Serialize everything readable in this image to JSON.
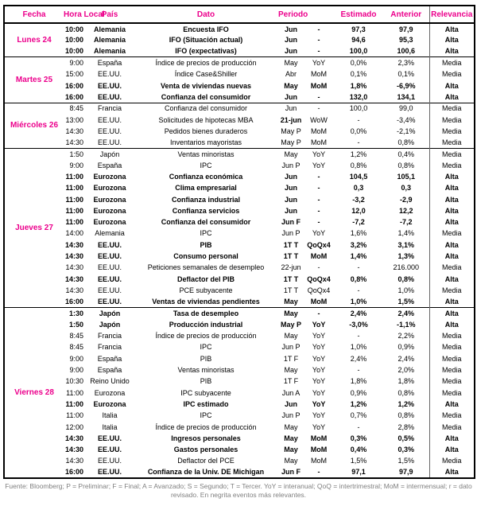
{
  "accent": "#EC008C",
  "header": {
    "columns": [
      "Fecha",
      "Hora Local",
      "País",
      "Dato",
      "Periodo",
      "",
      "Estimado",
      "Anterior",
      "Relevancia"
    ]
  },
  "sections": [
    {
      "day": "Lunes 24",
      "rows": [
        {
          "time": "10:00",
          "country": "Alemania",
          "dato": "Encuesta IFO",
          "period": "Jun",
          "freq": "-",
          "est": "97,3",
          "ant": "97,9",
          "rel": "Alta",
          "bold": true
        },
        {
          "time": "10:00",
          "country": "Alemania",
          "dato": "IFO (Situación actual)",
          "period": "Jun",
          "freq": "-",
          "est": "94,6",
          "ant": "95,3",
          "rel": "Alta",
          "bold": true
        },
        {
          "time": "10:00",
          "country": "Alemania",
          "dato": "IFO (expectativas)",
          "period": "Jun",
          "freq": "-",
          "est": "100,0",
          "ant": "100,6",
          "rel": "Alta",
          "bold": true
        }
      ]
    },
    {
      "day": "Martes 25",
      "rows": [
        {
          "time": "9:00",
          "country": "España",
          "dato": "Índice de precios de producción",
          "period": "May",
          "freq": "YoY",
          "est": "0,0%",
          "ant": "2,3%",
          "rel": "Media",
          "bold": false
        },
        {
          "time": "15:00",
          "country": "EE.UU.",
          "dato": "Índice Case&Shiller",
          "period": "Abr",
          "freq": "MoM",
          "est": "0,1%",
          "ant": "0,1%",
          "rel": "Media",
          "bold": false
        },
        {
          "time": "16:00",
          "country": "EE.UU.",
          "dato": "Venta de viviendas nuevas",
          "period": "May",
          "freq": "MoM",
          "est": "1,8%",
          "ant": "-6,9%",
          "rel": "Alta",
          "bold": true
        },
        {
          "time": "16:00",
          "country": "EE.UU.",
          "dato": "Confianza del consumidor",
          "period": "Jun",
          "freq": "-",
          "est": "132,0",
          "ant": "134,1",
          "rel": "Alta",
          "bold": true
        }
      ]
    },
    {
      "day": "Miércoles 26",
      "rows": [
        {
          "time": "8:45",
          "country": "Francia",
          "dato": "Confianza del consumidor",
          "period": "Jun",
          "freq": "-",
          "est": "100,0",
          "ant": "99,0",
          "rel": "Media",
          "bold": false
        },
        {
          "time": "13:00",
          "country": "EE.UU.",
          "dato": "Solicitudes de hipotecas MBA",
          "period": "21-jun",
          "freq": "WoW",
          "est": "-",
          "ant": "-3,4%",
          "rel": "Media",
          "bold": false,
          "pbold": true
        },
        {
          "time": "14:30",
          "country": "EE.UU.",
          "dato": "Pedidos bienes duraderos",
          "period": "May P",
          "freq": "MoM",
          "est": "0,0%",
          "ant": "-2,1%",
          "rel": "Media",
          "bold": false
        },
        {
          "time": "14:30",
          "country": "EE.UU.",
          "dato": "Inventarios mayoristas",
          "period": "May P",
          "freq": "MoM",
          "est": "-",
          "ant": "0,8%",
          "rel": "Media",
          "bold": false
        }
      ]
    },
    {
      "day": "Jueves 27",
      "rows": [
        {
          "time": "1:50",
          "country": "Japón",
          "dato": "Ventas minoristas",
          "period": "May",
          "freq": "YoY",
          "est": "1,2%",
          "ant": "0,4%",
          "rel": "Media",
          "bold": false
        },
        {
          "time": "9:00",
          "country": "España",
          "dato": "IPC",
          "period": "Jun P",
          "freq": "YoY",
          "est": "0,8%",
          "ant": "0,8%",
          "rel": "Media",
          "bold": false
        },
        {
          "time": "11:00",
          "country": "Eurozona",
          "dato": "Confianza económica",
          "period": "Jun",
          "freq": "-",
          "est": "104,5",
          "ant": "105,1",
          "rel": "Alta",
          "bold": true
        },
        {
          "time": "11:00",
          "country": "Eurozona",
          "dato": "Clima empresarial",
          "period": "Jun",
          "freq": "-",
          "est": "0,3",
          "ant": "0,3",
          "rel": "Alta",
          "bold": true
        },
        {
          "time": "11:00",
          "country": "Eurozona",
          "dato": "Confianza industrial",
          "period": "Jun",
          "freq": "-",
          "est": "-3,2",
          "ant": "-2,9",
          "rel": "Alta",
          "bold": true
        },
        {
          "time": "11:00",
          "country": "Eurozona",
          "dato": "Confianza servicios",
          "period": "Jun",
          "freq": "-",
          "est": "12,0",
          "ant": "12,2",
          "rel": "Alta",
          "bold": true
        },
        {
          "time": "11:00",
          "country": "Eurozona",
          "dato": "Confianza del consumidor",
          "period": "Jun F",
          "freq": "-",
          "est": "-7,2",
          "ant": "-7,2",
          "rel": "Alta",
          "bold": true
        },
        {
          "time": "14:00",
          "country": "Alemania",
          "dato": "IPC",
          "period": "Jun P",
          "freq": "YoY",
          "est": "1,6%",
          "ant": "1,4%",
          "rel": "Media",
          "bold": false
        },
        {
          "time": "14:30",
          "country": "EE.UU.",
          "dato": "PIB",
          "period": "1T T",
          "freq": "QoQx4",
          "est": "3,2%",
          "ant": "3,1%",
          "rel": "Alta",
          "bold": true
        },
        {
          "time": "14:30",
          "country": "EE.UU.",
          "dato": "Consumo personal",
          "period": "1T T",
          "freq": "MoM",
          "est": "1,4%",
          "ant": "1,3%",
          "rel": "Alta",
          "bold": true
        },
        {
          "time": "14:30",
          "country": "EE.UU.",
          "dato": "Peticiones semanales de desempleo",
          "period": "22-jun",
          "freq": "-",
          "est": "-",
          "ant": "216.000",
          "rel": "Media",
          "bold": false
        },
        {
          "time": "14:30",
          "country": "EE.UU.",
          "dato": "Deflactor del PIB",
          "period": "1T T",
          "freq": "QoQx4",
          "est": "0,8%",
          "ant": "0,8%",
          "rel": "Alta",
          "bold": true
        },
        {
          "time": "14:30",
          "country": "EE.UU.",
          "dato": "PCE subyacente",
          "period": "1T T",
          "freq": "QoQx4",
          "est": "-",
          "ant": "1,0%",
          "rel": "Media",
          "bold": false
        },
        {
          "time": "16:00",
          "country": "EE.UU.",
          "dato": "Ventas de viviendas pendientes",
          "period": "May",
          "freq": "MoM",
          "est": "1,0%",
          "ant": "1,5%",
          "rel": "Alta",
          "bold": true
        }
      ]
    },
    {
      "day": "Viernes 28",
      "rows": [
        {
          "time": "1:30",
          "country": "Japón",
          "dato": "Tasa de desempleo",
          "period": "May",
          "freq": "-",
          "est": "2,4%",
          "ant": "2,4%",
          "rel": "Alta",
          "bold": true
        },
        {
          "time": "1:50",
          "country": "Japón",
          "dato": "Producción industrial",
          "period": "May P",
          "freq": "YoY",
          "est": "-3,0%",
          "ant": "-1,1%",
          "rel": "Alta",
          "bold": true
        },
        {
          "time": "8:45",
          "country": "Francia",
          "dato": "Índice de precios de producción",
          "period": "May",
          "freq": "YoY",
          "est": "-",
          "ant": "2,2%",
          "rel": "Media",
          "bold": false
        },
        {
          "time": "8:45",
          "country": "Francia",
          "dato": "IPC",
          "period": "Jun P",
          "freq": "YoY",
          "est": "1,0%",
          "ant": "0,9%",
          "rel": "Media",
          "bold": false
        },
        {
          "time": "9:00",
          "country": "España",
          "dato": "PIB",
          "period": "1T F",
          "freq": "YoY",
          "est": "2,4%",
          "ant": "2,4%",
          "rel": "Media",
          "bold": false
        },
        {
          "time": "9:00",
          "country": "España",
          "dato": "Ventas minoristas",
          "period": "May",
          "freq": "YoY",
          "est": "-",
          "ant": "2,0%",
          "rel": "Media",
          "bold": false
        },
        {
          "time": "10:30",
          "country": "Reino Unido",
          "dato": "PIB",
          "period": "1T F",
          "freq": "YoY",
          "est": "1,8%",
          "ant": "1,8%",
          "rel": "Media",
          "bold": false
        },
        {
          "time": "11:00",
          "country": "Eurozona",
          "dato": "IPC subyacente",
          "period": "Jun A",
          "freq": "YoY",
          "est": "0,9%",
          "ant": "0,8%",
          "rel": "Media",
          "bold": false
        },
        {
          "time": "11:00",
          "country": "Eurozona",
          "dato": "IPC estimado",
          "period": "Jun",
          "freq": "YoY",
          "est": "1,2%",
          "ant": "1,2%",
          "rel": "Alta",
          "bold": true
        },
        {
          "time": "11:00",
          "country": "Italia",
          "dato": "IPC",
          "period": "Jun P",
          "freq": "YoY",
          "est": "0,7%",
          "ant": "0,8%",
          "rel": "Media",
          "bold": false
        },
        {
          "time": "12:00",
          "country": "Italia",
          "dato": "Índice de precios de producción",
          "period": "May",
          "freq": "YoY",
          "est": "-",
          "ant": "2,8%",
          "rel": "Media",
          "bold": false
        },
        {
          "time": "14:30",
          "country": "EE.UU.",
          "dato": "Ingresos personales",
          "period": "May",
          "freq": "MoM",
          "est": "0,3%",
          "ant": "0,5%",
          "rel": "Alta",
          "bold": true
        },
        {
          "time": "14:30",
          "country": "EE.UU.",
          "dato": "Gastos personales",
          "period": "May",
          "freq": "MoM",
          "est": "0,4%",
          "ant": "0,3%",
          "rel": "Alta",
          "bold": true
        },
        {
          "time": "14:30",
          "country": "EE.UU.",
          "dato": "Deflactor del PCE",
          "period": "May",
          "freq": "MoM",
          "est": "1,5%",
          "ant": "1,5%",
          "rel": "Media",
          "bold": false
        },
        {
          "time": "16:00",
          "country": "EE.UU.",
          "dato": "Confianza de la Univ. DE Michigan",
          "period": "Jun F",
          "freq": "-",
          "est": "97,1",
          "ant": "97,9",
          "rel": "Alta",
          "bold": true
        }
      ]
    }
  ],
  "footer": {
    "text": "Fuente: Bloomberg; P = Preliminar; F = Final; A = Avanzado; S = Segundo; T = Tercer.  YoY = interanual; QoQ = intertrimestral; MoM = intermensual; r = dato revisado. En negrita eventos más relevantes."
  }
}
